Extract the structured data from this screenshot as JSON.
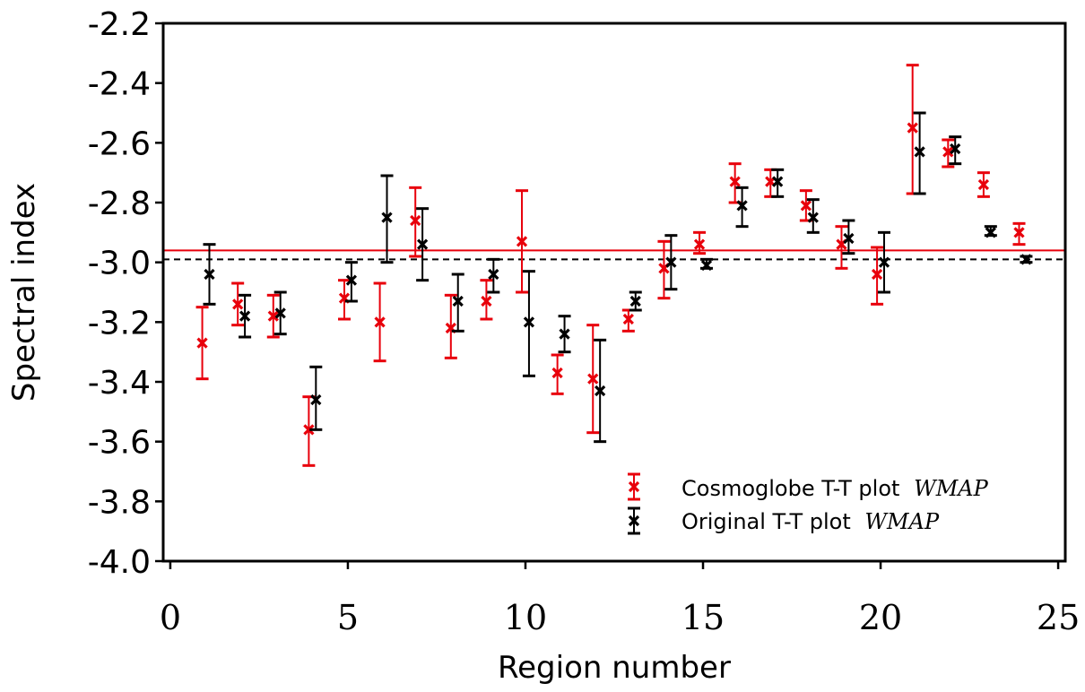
{
  "chart_data": {
    "type": "scatter",
    "xlabel": "Region number",
    "ylabel": "Spectral index",
    "xlim": [
      -0.2,
      25.2
    ],
    "ylim": [
      -4.0,
      -2.2
    ],
    "xticks": [
      0,
      5,
      10,
      15,
      20,
      25
    ],
    "yticks": [
      -4.0,
      -3.8,
      -3.6,
      -3.4,
      -3.2,
      -3.0,
      -2.8,
      -2.6,
      -2.4,
      -2.2
    ],
    "ytick_labels": [
      "-4.0",
      "-3.8",
      "-3.6",
      "-3.4",
      "-3.2",
      "-3.0",
      "-2.8",
      "-2.6",
      "-2.4",
      "-2.2"
    ],
    "xtick_labels": [
      "0",
      "5",
      "10",
      "15",
      "20",
      "25"
    ],
    "grid": false,
    "legend_position": "bottom-right",
    "reference_lines": [
      {
        "y": -2.96,
        "color": "#e8000b",
        "style": "solid"
      },
      {
        "y": -2.99,
        "color": "#000000",
        "style": "dashed"
      }
    ],
    "series": [
      {
        "name": "Cosmoglobe T-T plot",
        "name_math": "WMAP",
        "color": "#e8000b",
        "x_offset": -0.1,
        "points": [
          {
            "x": 1,
            "y": -3.27,
            "lo": -3.39,
            "hi": -3.15
          },
          {
            "x": 2,
            "y": -3.14,
            "lo": -3.21,
            "hi": -3.07
          },
          {
            "x": 3,
            "y": -3.18,
            "lo": -3.25,
            "hi": -3.11
          },
          {
            "x": 4,
            "y": -3.56,
            "lo": -3.68,
            "hi": -3.45
          },
          {
            "x": 5,
            "y": -3.12,
            "lo": -3.19,
            "hi": -3.06
          },
          {
            "x": 6,
            "y": -3.2,
            "lo": -3.33,
            "hi": -3.07
          },
          {
            "x": 7,
            "y": -2.86,
            "lo": -2.98,
            "hi": -2.75
          },
          {
            "x": 8,
            "y": -3.22,
            "lo": -3.32,
            "hi": -3.11
          },
          {
            "x": 9,
            "y": -3.13,
            "lo": -3.19,
            "hi": -3.06
          },
          {
            "x": 10,
            "y": -2.93,
            "lo": -3.1,
            "hi": -2.76
          },
          {
            "x": 11,
            "y": -3.37,
            "lo": -3.44,
            "hi": -3.31
          },
          {
            "x": 12,
            "y": -3.39,
            "lo": -3.57,
            "hi": -3.21
          },
          {
            "x": 13,
            "y": -3.19,
            "lo": -3.23,
            "hi": -3.16
          },
          {
            "x": 14,
            "y": -3.02,
            "lo": -3.12,
            "hi": -2.93
          },
          {
            "x": 15,
            "y": -2.94,
            "lo": -2.97,
            "hi": -2.9
          },
          {
            "x": 16,
            "y": -2.73,
            "lo": -2.8,
            "hi": -2.67
          },
          {
            "x": 17,
            "y": -2.73,
            "lo": -2.78,
            "hi": -2.69
          },
          {
            "x": 18,
            "y": -2.81,
            "lo": -2.86,
            "hi": -2.76
          },
          {
            "x": 19,
            "y": -2.94,
            "lo": -3.02,
            "hi": -2.88
          },
          {
            "x": 20,
            "y": -3.04,
            "lo": -3.14,
            "hi": -2.95
          },
          {
            "x": 21,
            "y": -2.55,
            "lo": -2.77,
            "hi": -2.34
          },
          {
            "x": 22,
            "y": -2.63,
            "lo": -2.68,
            "hi": -2.59
          },
          {
            "x": 23,
            "y": -2.74,
            "lo": -2.78,
            "hi": -2.7
          },
          {
            "x": 24,
            "y": -2.9,
            "lo": -2.94,
            "hi": -2.87
          }
        ]
      },
      {
        "name": "Original T-T plot",
        "name_math": "WMAP",
        "color": "#000000",
        "x_offset": 0.1,
        "points": [
          {
            "x": 1,
            "y": -3.04,
            "lo": -3.14,
            "hi": -2.94
          },
          {
            "x": 2,
            "y": -3.18,
            "lo": -3.25,
            "hi": -3.11
          },
          {
            "x": 3,
            "y": -3.17,
            "lo": -3.24,
            "hi": -3.1
          },
          {
            "x": 4,
            "y": -3.46,
            "lo": -3.56,
            "hi": -3.35
          },
          {
            "x": 5,
            "y": -3.06,
            "lo": -3.13,
            "hi": -3.0
          },
          {
            "x": 6,
            "y": -2.85,
            "lo": -3.0,
            "hi": -2.71
          },
          {
            "x": 7,
            "y": -2.94,
            "lo": -3.06,
            "hi": -2.82
          },
          {
            "x": 8,
            "y": -3.13,
            "lo": -3.23,
            "hi": -3.04
          },
          {
            "x": 9,
            "y": -3.04,
            "lo": -3.1,
            "hi": -2.99
          },
          {
            "x": 10,
            "y": -3.2,
            "lo": -3.38,
            "hi": -3.03
          },
          {
            "x": 11,
            "y": -3.24,
            "lo": -3.3,
            "hi": -3.18
          },
          {
            "x": 12,
            "y": -3.43,
            "lo": -3.6,
            "hi": -3.26
          },
          {
            "x": 13,
            "y": -3.13,
            "lo": -3.16,
            "hi": -3.1
          },
          {
            "x": 14,
            "y": -3.0,
            "lo": -3.09,
            "hi": -2.91
          },
          {
            "x": 15,
            "y": -3.01,
            "lo": -3.02,
            "hi": -2.99
          },
          {
            "x": 16,
            "y": -2.81,
            "lo": -2.88,
            "hi": -2.75
          },
          {
            "x": 17,
            "y": -2.73,
            "lo": -2.78,
            "hi": -2.69
          },
          {
            "x": 18,
            "y": -2.85,
            "lo": -2.9,
            "hi": -2.79
          },
          {
            "x": 19,
            "y": -2.92,
            "lo": -2.97,
            "hi": -2.86
          },
          {
            "x": 20,
            "y": -3.0,
            "lo": -3.1,
            "hi": -2.9
          },
          {
            "x": 21,
            "y": -2.63,
            "lo": -2.77,
            "hi": -2.5
          },
          {
            "x": 22,
            "y": -2.62,
            "lo": -2.67,
            "hi": -2.58
          },
          {
            "x": 23,
            "y": -2.9,
            "lo": -2.91,
            "hi": -2.88
          },
          {
            "x": 24,
            "y": -2.99,
            "lo": -3.0,
            "hi": -2.98
          }
        ]
      }
    ]
  }
}
